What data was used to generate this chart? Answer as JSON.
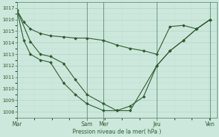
{
  "background_color": "#cce8dc",
  "grid_color_major": "#aaccbb",
  "grid_color_minor": "#bbddd0",
  "line_color": "#2d5a2d",
  "xlabel": "Pression niveau de la mer( hPa )",
  "ylim": [
    1007.5,
    1017.5
  ],
  "xlim": [
    0,
    120
  ],
  "day_labels": [
    "Mar",
    "Sam",
    "Mer",
    "Jeu",
    "Ven"
  ],
  "day_positions": [
    0,
    42,
    52,
    84,
    116
  ],
  "series1_x": [
    0,
    4,
    8,
    14,
    20,
    28,
    35,
    42,
    52,
    60,
    68,
    76,
    84,
    92,
    100,
    108,
    116
  ],
  "series1_y": [
    1016.8,
    1015.8,
    1015.2,
    1014.8,
    1014.6,
    1014.5,
    1014.4,
    1014.4,
    1014.2,
    1013.8,
    1013.5,
    1013.3,
    1013.0,
    1015.4,
    1015.5,
    1015.2,
    1016.0
  ],
  "series2_x": [
    0,
    4,
    8,
    14,
    20,
    28,
    35,
    42,
    52,
    60,
    68,
    76,
    84,
    92,
    100,
    108,
    116
  ],
  "series2_y": [
    1016.8,
    1014.2,
    1013.0,
    1012.5,
    1012.3,
    1010.5,
    1009.5,
    1008.7,
    1008.1,
    1008.1,
    1008.5,
    1009.3,
    1012.0,
    1013.3,
    1014.2,
    1015.2,
    1016.0
  ],
  "series3_x": [
    0,
    8,
    14,
    20,
    28,
    35,
    42,
    52,
    60,
    68,
    84,
    92,
    100,
    108,
    116
  ],
  "series3_y": [
    1016.8,
    1014.1,
    1013.0,
    1012.8,
    1012.2,
    1010.8,
    1009.5,
    1008.7,
    1008.1,
    1008.1,
    1012.0,
    1013.3,
    1014.2,
    1015.2,
    1016.0
  ],
  "marker": "D",
  "markersize": 2.0,
  "linewidth": 0.85,
  "ytick_fontsize": 5.0,
  "xtick_fontsize": 5.5,
  "xlabel_fontsize": 5.8
}
